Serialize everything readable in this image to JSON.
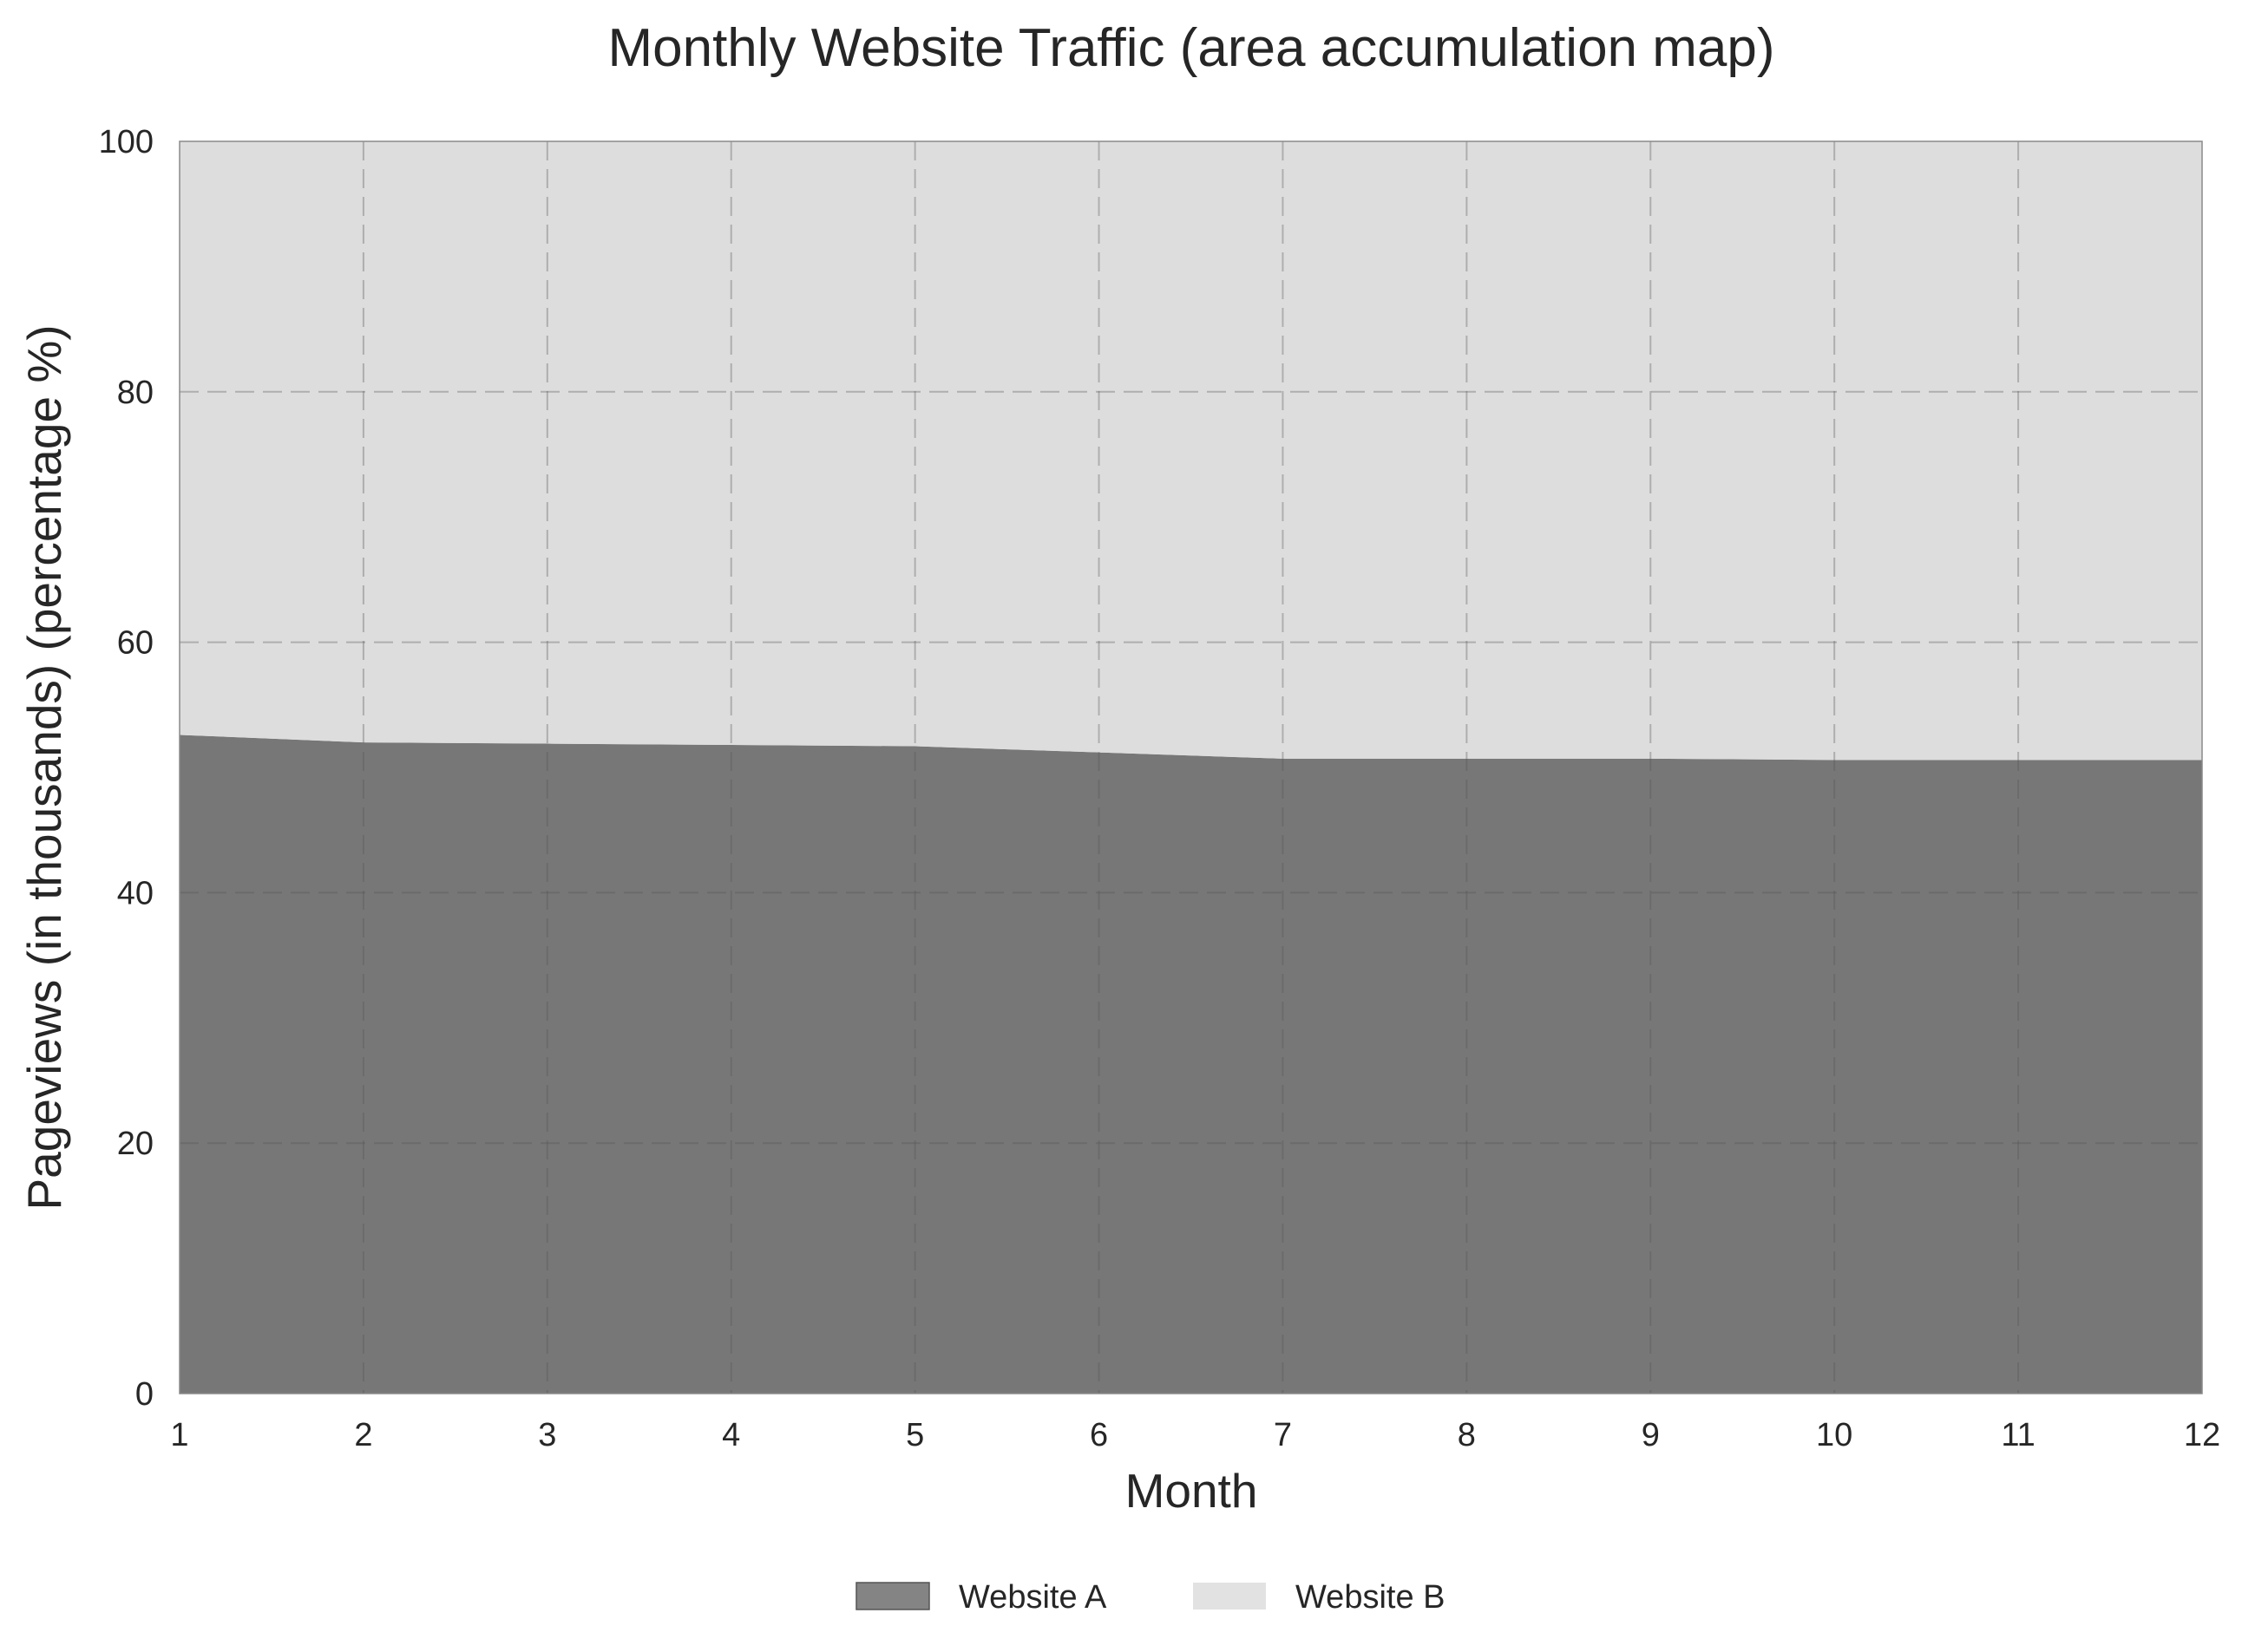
{
  "chart_data": {
    "type": "area",
    "stacked": true,
    "normalized_percent": true,
    "title": "Monthly Website Traffic (area accumulation map)",
    "xlabel": "Month",
    "ylabel": "Pageviews (in thousands) (percentage %)",
    "x": [
      1,
      2,
      3,
      4,
      5,
      6,
      7,
      8,
      9,
      10,
      11,
      12
    ],
    "x_ticks": [
      "1",
      "2",
      "3",
      "4",
      "5",
      "6",
      "7",
      "8",
      "9",
      "10",
      "11",
      "12"
    ],
    "y_ticks": [
      "0",
      "20",
      "40",
      "60",
      "80",
      "100"
    ],
    "xlim": [
      1,
      12
    ],
    "ylim": [
      0,
      100
    ],
    "grid": true,
    "legend_position": "bottom-center",
    "series": [
      {
        "name": "Website A",
        "color": "#777777",
        "values": [
          52.6,
          52.0,
          51.9,
          51.8,
          51.7,
          51.2,
          50.7,
          50.7,
          50.7,
          50.6,
          50.6,
          50.6
        ]
      },
      {
        "name": "Website B",
        "color": "#dddddd",
        "values": [
          47.4,
          48.0,
          48.1,
          48.2,
          48.3,
          48.8,
          49.3,
          49.3,
          49.3,
          49.4,
          49.4,
          49.4
        ]
      }
    ]
  }
}
